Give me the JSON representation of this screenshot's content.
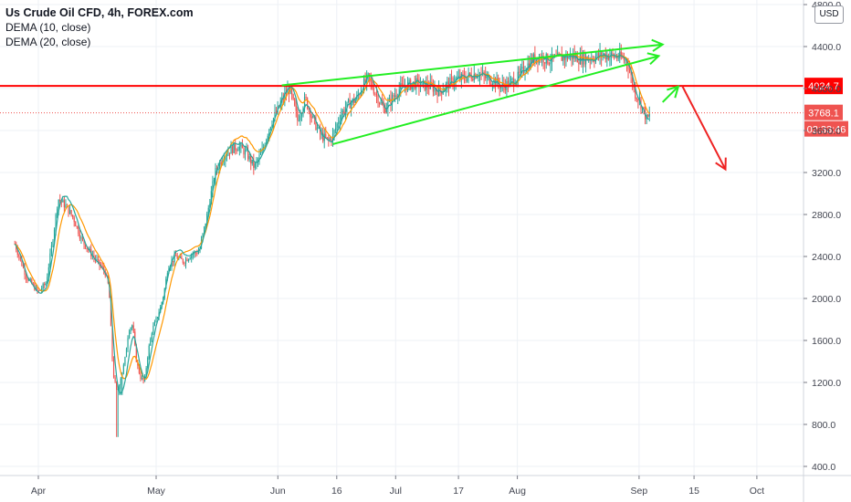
{
  "title": "Us Crude Oil CFD, 4h, FOREX.com",
  "indicators": [
    "DEMA (10, close)",
    "DEMA (20, close)"
  ],
  "currency": "USD",
  "colors": {
    "up": "#26a69a",
    "down": "#ef5350",
    "dema10": "#26a69a",
    "dema20": "#ff9800",
    "support_line": "#ff0000",
    "wedge": "#22ee22",
    "arrow_down": "#ee2222",
    "grid": "#edf0f5"
  },
  "chart_data": {
    "type": "candlestick",
    "symbol": "Us Crude Oil CFD",
    "timeframe": "4h",
    "ylim": [
      300,
      4850
    ],
    "yticks": [
      400,
      800,
      1200,
      1600,
      2000,
      2400,
      2800,
      3200,
      3600,
      4000,
      4400,
      4800
    ],
    "ytick_labels": [
      "400.0",
      "800.0",
      "1200.0",
      "1600.0",
      "2000.0",
      "2400.0",
      "2800.0",
      "3200.0",
      "3600.0",
      "4000.0",
      "4400.0",
      "4800.0"
    ],
    "x_range_days": [
      -10,
      195
    ],
    "xticks": [
      {
        "label": "Apr",
        "day": 0
      },
      {
        "label": "May",
        "day": 30
      },
      {
        "label": "Jun",
        "day": 61
      },
      {
        "label": "16",
        "day": 76
      },
      {
        "label": "Jul",
        "day": 91
      },
      {
        "label": "17",
        "day": 107
      },
      {
        "label": "Aug",
        "day": 122
      },
      {
        "label": "Sep",
        "day": 153
      },
      {
        "label": "15",
        "day": 167
      },
      {
        "label": "Oct",
        "day": 183
      }
    ],
    "price_path": [
      [
        -6,
        2520
      ],
      [
        -3,
        2200
      ],
      [
        0,
        2060
      ],
      [
        2,
        2150
      ],
      [
        4,
        2650
      ],
      [
        5,
        2950
      ],
      [
        7,
        2880
      ],
      [
        9,
        2760
      ],
      [
        11,
        2560
      ],
      [
        13,
        2450
      ],
      [
        15,
        2350
      ],
      [
        17,
        2250
      ],
      [
        18,
        2100
      ],
      [
        19,
        1300
      ],
      [
        20,
        1100
      ],
      [
        22,
        1400
      ],
      [
        23,
        1700
      ],
      [
        24,
        1750
      ],
      [
        25,
        1400
      ],
      [
        26,
        1250
      ],
      [
        27,
        1200
      ],
      [
        28,
        1500
      ],
      [
        29,
        1700
      ],
      [
        30,
        1800
      ],
      [
        31,
        1900
      ],
      [
        32,
        2050
      ],
      [
        33,
        2300
      ],
      [
        35,
        2400
      ],
      [
        37,
        2350
      ],
      [
        39,
        2420
      ],
      [
        41,
        2450
      ],
      [
        43,
        2800
      ],
      [
        45,
        3200
      ],
      [
        47,
        3350
      ],
      [
        49,
        3420
      ],
      [
        51,
        3450
      ],
      [
        53,
        3380
      ],
      [
        55,
        3250
      ],
      [
        57,
        3400
      ],
      [
        59,
        3650
      ],
      [
        61,
        3800
      ],
      [
        63,
        3950
      ],
      [
        64,
        4000
      ],
      [
        65,
        3850
      ],
      [
        66,
        3700
      ],
      [
        68,
        3900
      ],
      [
        70,
        3700
      ],
      [
        72,
        3550
      ],
      [
        74,
        3500
      ],
      [
        75,
        3550
      ],
      [
        77,
        3750
      ],
      [
        79,
        3850
      ],
      [
        81,
        3900
      ],
      [
        83,
        4050
      ],
      [
        84,
        4100
      ],
      [
        86,
        3950
      ],
      [
        88,
        3800
      ],
      [
        90,
        3900
      ],
      [
        92,
        4000
      ],
      [
        94,
        4030
      ],
      [
        96,
        4050
      ],
      [
        98,
        4030
      ],
      [
        100,
        4020
      ],
      [
        102,
        3970
      ],
      [
        104,
        4030
      ],
      [
        106,
        4080
      ],
      [
        108,
        4100
      ],
      [
        110,
        4120
      ],
      [
        112,
        4150
      ],
      [
        114,
        4100
      ],
      [
        116,
        4080
      ],
      [
        118,
        4020
      ],
      [
        120,
        4050
      ],
      [
        122,
        4100
      ],
      [
        124,
        4200
      ],
      [
        126,
        4280
      ],
      [
        128,
        4300
      ],
      [
        130,
        4270
      ],
      [
        132,
        4280
      ],
      [
        134,
        4300
      ],
      [
        136,
        4310
      ],
      [
        138,
        4280
      ],
      [
        140,
        4290
      ],
      [
        142,
        4300
      ],
      [
        144,
        4320
      ],
      [
        146,
        4310
      ],
      [
        148,
        4300
      ],
      [
        150,
        4260
      ],
      [
        151,
        4100
      ],
      [
        152,
        3950
      ],
      [
        153,
        3900
      ],
      [
        154,
        3800
      ],
      [
        155,
        3700
      ],
      [
        156,
        3770
      ]
    ],
    "horizontal_line": {
      "value": 4024.7,
      "label": "4024.7"
    },
    "last_price": {
      "value": 3768.1,
      "label": "3768.1"
    },
    "countdown": "02:33:46",
    "drawings": [
      {
        "type": "trendline",
        "from": [
          62,
          4030
        ],
        "to": [
          159,
          4420
        ],
        "arrowhead": true
      },
      {
        "type": "trendline",
        "from": [
          75,
          3470
        ],
        "to": [
          158,
          4310
        ],
        "arrowhead": true
      },
      {
        "type": "arrow_up",
        "from": [
          159,
          3870
        ],
        "to": [
          163,
          4020
        ]
      },
      {
        "type": "arrow_down",
        "from": [
          164,
          4024.7
        ],
        "to": [
          175,
          3230
        ]
      }
    ]
  }
}
